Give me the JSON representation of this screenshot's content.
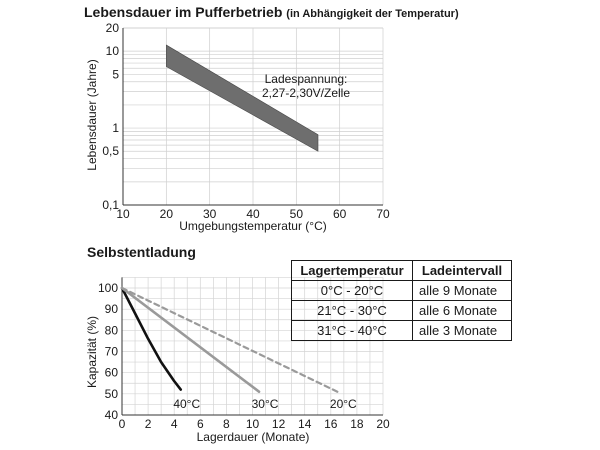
{
  "chart_data": [
    {
      "type": "area",
      "title": "Lebensdauer im Pufferbetrieb",
      "subtitle": "(in Abhängigkeit der Temperatur)",
      "xlabel": "Umgebungstemperatur (°C)",
      "ylabel": "Lebensdauer (Jahre)",
      "xlim": [
        10,
        70
      ],
      "ylim": [
        0.1,
        20
      ],
      "yscale": "log",
      "grid": true,
      "x_ticks": [
        10,
        20,
        30,
        40,
        50,
        60,
        70
      ],
      "y_ticks": [
        0.1,
        0.5,
        1,
        5,
        10,
        20
      ],
      "y_tick_labels": [
        "0,1",
        "0,5",
        "1",
        "5",
        "10",
        "20"
      ],
      "band": {
        "x": [
          20,
          55
        ],
        "upper": [
          12,
          0.82
        ],
        "lower": [
          6.3,
          0.5
        ],
        "color": "#6e6e6e"
      },
      "annotation": {
        "line1": "Ladespannung:",
        "line2": "2,27-2,30V/Zelle"
      }
    },
    {
      "type": "line",
      "title": "Selbstentladung",
      "xlabel": "Lagerdauer (Monate)",
      "ylabel": "Kapazität (%)",
      "xlim": [
        0,
        20
      ],
      "ylim": [
        40,
        100
      ],
      "grid": true,
      "x_ticks": [
        0,
        2,
        4,
        6,
        8,
        10,
        12,
        14,
        16,
        18,
        20
      ],
      "y_ticks": [
        40,
        50,
        60,
        70,
        80,
        90,
        100
      ],
      "series": [
        {
          "name": "40°C",
          "x": [
            0,
            1,
            2,
            3,
            4,
            4.5
          ],
          "y": [
            100,
            88,
            76,
            65,
            56,
            52
          ],
          "color": "#111111",
          "dash": false,
          "width": 2.6
        },
        {
          "name": "30°C",
          "x": [
            0,
            10.5
          ],
          "y": [
            100,
            51
          ],
          "color": "#9a9a9a",
          "dash": false,
          "width": 2.6
        },
        {
          "name": "20°C",
          "x": [
            0,
            16.5
          ],
          "y": [
            100,
            51
          ],
          "color": "#9a9a9a",
          "dash": true,
          "width": 2.2
        }
      ]
    }
  ],
  "table": {
    "headers": [
      "Lagertemperatur",
      "Ladeintervall"
    ],
    "rows": [
      [
        "0°C - 20°C",
        "alle 9 Monate"
      ],
      [
        "21°C - 30°C",
        "alle 6 Monate"
      ],
      [
        "31°C - 40°C",
        "alle 3 Monate"
      ]
    ]
  }
}
